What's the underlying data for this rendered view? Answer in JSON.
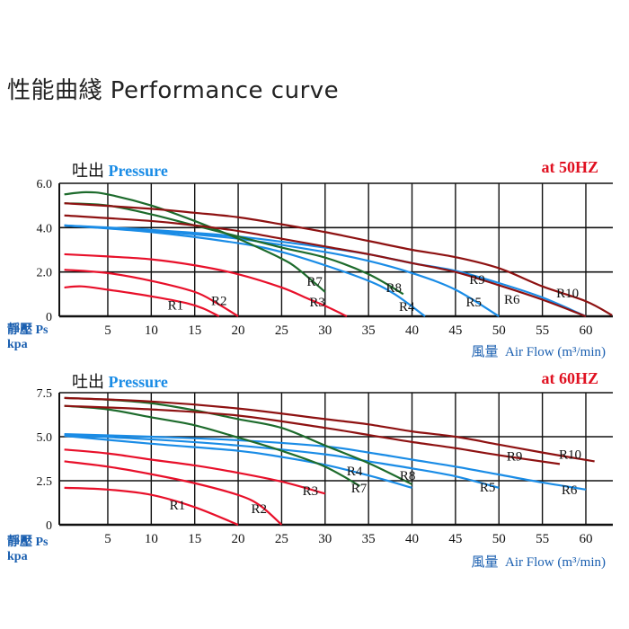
{
  "title": "性能曲綫 Performance curve",
  "colors": {
    "R1": "#e8102a",
    "R2": "#e8102a",
    "R3": "#e8102a",
    "R4": "#1a8ce6",
    "R5": "#1a8ce6",
    "R6": "#1a8ce6",
    "R7": "#1d6b2c",
    "R8": "#1d6b2c",
    "R9": "#8e1212",
    "R10": "#8e1212"
  },
  "chart_data": [
    {
      "type": "line",
      "header_cn": "吐出",
      "header_en": "Pressure",
      "frequency": "at 50HZ",
      "ylabel_cn": "靜壓",
      "ylabel_en": "Ps",
      "yunit": "kpa",
      "xlabel_cn": "風量",
      "xlabel_en": "Air Flow (m³/min)",
      "xlim": [
        0,
        63
      ],
      "ylim": [
        0,
        6
      ],
      "grid": true,
      "xticks": [
        5,
        10,
        15,
        20,
        25,
        30,
        35,
        40,
        45,
        50,
        55,
        60
      ],
      "yticks": [
        0,
        2,
        4,
        6
      ],
      "ytick_labels": [
        "0",
        "2.0",
        "4.0",
        "6.0"
      ],
      "series": [
        {
          "name": "R1",
          "points": [
            [
              0,
              1.3
            ],
            [
              2,
              1.35
            ],
            [
              5,
              1.2
            ],
            [
              10,
              0.9
            ],
            [
              14,
              0.6
            ],
            [
              16,
              0.35
            ],
            [
              17.8,
              0
            ]
          ],
          "label_at": [
            12.8,
            0.5
          ]
        },
        {
          "name": "R2",
          "points": [
            [
              0,
              2.1
            ],
            [
              5,
              1.95
            ],
            [
              10,
              1.6
            ],
            [
              15,
              1.1
            ],
            [
              17.5,
              0.6
            ],
            [
              20,
              0
            ]
          ],
          "label_at": [
            17.8,
            0.7
          ]
        },
        {
          "name": "R3",
          "points": [
            [
              0,
              2.8
            ],
            [
              5,
              2.7
            ],
            [
              10,
              2.57
            ],
            [
              15,
              2.3
            ],
            [
              20,
              1.9
            ],
            [
              25,
              1.3
            ],
            [
              28,
              0.8
            ],
            [
              30,
              0.47
            ],
            [
              32.5,
              0
            ]
          ],
          "label_at": [
            29.1,
            0.65
          ]
        },
        {
          "name": "R4",
          "points": [
            [
              0,
              4.1
            ],
            [
              10,
              3.8
            ],
            [
              20,
              3.3
            ],
            [
              25,
              2.9
            ],
            [
              30,
              2.3
            ],
            [
              35,
              1.6
            ],
            [
              38,
              1.0
            ],
            [
              41.5,
              0
            ]
          ],
          "label_at": [
            39.4,
            0.45
          ]
        },
        {
          "name": "R5",
          "points": [
            [
              0,
              4.1
            ],
            [
              10,
              3.85
            ],
            [
              20,
              3.5
            ],
            [
              30,
              2.9
            ],
            [
              35,
              2.5
            ],
            [
              40,
              1.95
            ],
            [
              45,
              1.2
            ],
            [
              50,
              0
            ]
          ],
          "label_at": [
            47.1,
            0.65
          ]
        },
        {
          "name": "R6",
          "points": [
            [
              0,
              4.1
            ],
            [
              10,
              3.9
            ],
            [
              20,
              3.6
            ],
            [
              30,
              3.1
            ],
            [
              35,
              2.8
            ],
            [
              40,
              2.4
            ],
            [
              45,
              2.05
            ],
            [
              50,
              1.5
            ],
            [
              55,
              0.85
            ],
            [
              60,
              0
            ]
          ],
          "label_at": [
            51.5,
            0.77
          ]
        },
        {
          "name": "R7",
          "points": [
            [
              0,
              5.5
            ],
            [
              2.5,
              5.6
            ],
            [
              5,
              5.5
            ],
            [
              10,
              5.0
            ],
            [
              15,
              4.3
            ],
            [
              20,
              3.5
            ],
            [
              25,
              2.6
            ],
            [
              27,
              2.1
            ],
            [
              30,
              1.1
            ]
          ],
          "label_at": [
            28.8,
            1.58
          ]
        },
        {
          "name": "R8",
          "points": [
            [
              0,
              5.1
            ],
            [
              5,
              5.0
            ],
            [
              10,
              4.6
            ],
            [
              15,
              4.1
            ],
            [
              20,
              3.6
            ],
            [
              25,
              3.1
            ],
            [
              30,
              2.65
            ],
            [
              35,
              1.9
            ],
            [
              39,
              1.0
            ]
          ],
          "label_at": [
            37.9,
            1.3
          ]
        },
        {
          "name": "R9",
          "points": [
            [
              0,
              4.55
            ],
            [
              10,
              4.3
            ],
            [
              15,
              4.1
            ],
            [
              20,
              3.85
            ],
            [
              25,
              3.5
            ],
            [
              30,
              3.15
            ],
            [
              35,
              2.8
            ],
            [
              40,
              2.4
            ],
            [
              45,
              2.0
            ],
            [
              50,
              1.4
            ],
            [
              55,
              0.75
            ],
            [
              60,
              0
            ]
          ],
          "label_at": [
            47.5,
            1.66
          ]
        },
        {
          "name": "R10",
          "points": [
            [
              0,
              5.1
            ],
            [
              10,
              4.85
            ],
            [
              15,
              4.67
            ],
            [
              20,
              4.47
            ],
            [
              25,
              4.15
            ],
            [
              30,
              3.8
            ],
            [
              35,
              3.4
            ],
            [
              40,
              3.0
            ],
            [
              45,
              2.67
            ],
            [
              50,
              2.17
            ],
            [
              55,
              1.35
            ],
            [
              60,
              0.68
            ],
            [
              63,
              0.05
            ]
          ],
          "label_at": [
            57.9,
            1.05
          ]
        }
      ]
    },
    {
      "type": "line",
      "header_cn": "吐出",
      "header_en": "Pressure",
      "frequency": "at 60HZ",
      "ylabel_cn": "靜壓",
      "ylabel_en": "Ps",
      "yunit": "kpa",
      "xlabel_cn": "風量",
      "xlabel_en": "Air Flow (m³/min)",
      "xlim": [
        0,
        63
      ],
      "ylim": [
        0,
        7.5
      ],
      "grid": true,
      "xticks": [
        5,
        10,
        15,
        20,
        25,
        30,
        35,
        40,
        45,
        50,
        55,
        60
      ],
      "yticks": [
        0,
        2.5,
        5,
        7.5
      ],
      "ytick_labels": [
        "0",
        "2.5",
        "5.0",
        "7.5"
      ],
      "series": [
        {
          "name": "R1",
          "points": [
            [
              0,
              2.1
            ],
            [
              5,
              2.0
            ],
            [
              10,
              1.7
            ],
            [
              15,
              1.0
            ],
            [
              20,
              0
            ]
          ],
          "label_at": [
            13,
            1.12
          ]
        },
        {
          "name": "R2",
          "points": [
            [
              0,
              3.6
            ],
            [
              5,
              3.3
            ],
            [
              10,
              2.87
            ],
            [
              15,
              2.36
            ],
            [
              20,
              1.69
            ],
            [
              22.5,
              1.1
            ],
            [
              25,
              0
            ]
          ],
          "label_at": [
            22.4,
            0.92
          ]
        },
        {
          "name": "R3",
          "points": [
            [
              0,
              4.27
            ],
            [
              5,
              4.05
            ],
            [
              10,
              3.7
            ],
            [
              15,
              3.37
            ],
            [
              20,
              2.95
            ],
            [
              25,
              2.45
            ],
            [
              30,
              1.77
            ]
          ],
          "label_at": [
            28.3,
            1.94
          ]
        },
        {
          "name": "R4",
          "points": [
            [
              0,
              5.05
            ],
            [
              10,
              4.6
            ],
            [
              20,
              4.2
            ],
            [
              25,
              3.85
            ],
            [
              30,
              3.4
            ],
            [
              35,
              2.8
            ],
            [
              40,
              2.1
            ]
          ],
          "label_at": [
            33.4,
            3.06
          ]
        },
        {
          "name": "R5",
          "points": [
            [
              0,
              5.1
            ],
            [
              10,
              4.85
            ],
            [
              20,
              4.5
            ],
            [
              30,
              4.0
            ],
            [
              35,
              3.6
            ],
            [
              40,
              3.2
            ],
            [
              45,
              2.75
            ],
            [
              50,
              2.1
            ]
          ],
          "label_at": [
            48.7,
            2.14
          ]
        },
        {
          "name": "R6",
          "points": [
            [
              0,
              5.15
            ],
            [
              10,
              5.0
            ],
            [
              20,
              4.8
            ],
            [
              30,
              4.45
            ],
            [
              35,
              4.1
            ],
            [
              40,
              3.7
            ],
            [
              45,
              3.3
            ],
            [
              50,
              2.85
            ],
            [
              55,
              2.4
            ],
            [
              60,
              2.0
            ]
          ],
          "label_at": [
            58.1,
            2.0
          ]
        },
        {
          "name": "R7",
          "points": [
            [
              0,
              6.75
            ],
            [
              5,
              6.55
            ],
            [
              10,
              6.1
            ],
            [
              15,
              5.65
            ],
            [
              20,
              4.95
            ],
            [
              25,
              4.2
            ],
            [
              30,
              3.3
            ],
            [
              34,
              2.2
            ]
          ],
          "label_at": [
            33.9,
            2.1
          ]
        },
        {
          "name": "R8",
          "points": [
            [
              0,
              7.2
            ],
            [
              5,
              7.1
            ],
            [
              10,
              6.9
            ],
            [
              15,
              6.5
            ],
            [
              20,
              6.0
            ],
            [
              25,
              5.5
            ],
            [
              30,
              4.5
            ],
            [
              35,
              3.5
            ],
            [
              40,
              2.3
            ]
          ],
          "label_at": [
            39.5,
            2.8
          ]
        },
        {
          "name": "R9",
          "points": [
            [
              0,
              6.75
            ],
            [
              10,
              6.55
            ],
            [
              20,
              6.2
            ],
            [
              30,
              5.5
            ],
            [
              35,
              5.1
            ],
            [
              40,
              4.7
            ],
            [
              45,
              4.35
            ],
            [
              50,
              3.95
            ],
            [
              57,
              3.45
            ]
          ],
          "label_at": [
            51.8,
            3.9
          ]
        },
        {
          "name": "R10",
          "points": [
            [
              0,
              7.2
            ],
            [
              10,
              7.0
            ],
            [
              20,
              6.6
            ],
            [
              30,
              6.0
            ],
            [
              35,
              5.7
            ],
            [
              40,
              5.3
            ],
            [
              45,
              5.0
            ],
            [
              50,
              4.55
            ],
            [
              55,
              4.1
            ],
            [
              61,
              3.6
            ]
          ],
          "label_at": [
            58.2,
            4.0
          ]
        }
      ]
    }
  ]
}
